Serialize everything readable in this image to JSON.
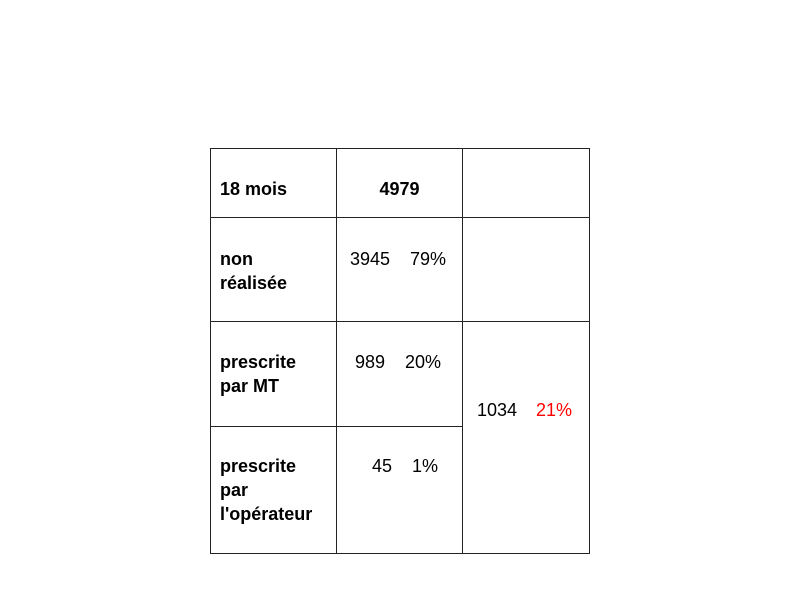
{
  "table": {
    "header": {
      "label": "18 mois",
      "total": "4979"
    },
    "rows": [
      {
        "label_lines": [
          "non",
          "réalisée"
        ],
        "count": "3945",
        "percent": "79%"
      },
      {
        "label_lines": [
          "prescrite",
          "par MT"
        ],
        "count": "989",
        "percent": "20%"
      },
      {
        "label_lines": [
          "prescrite",
          "par",
          "l'opérateur"
        ],
        "count": "45",
        "percent": "1%"
      }
    ],
    "merged": {
      "count": "1034",
      "percent": "21%",
      "percent_color": "#ff0000"
    }
  }
}
